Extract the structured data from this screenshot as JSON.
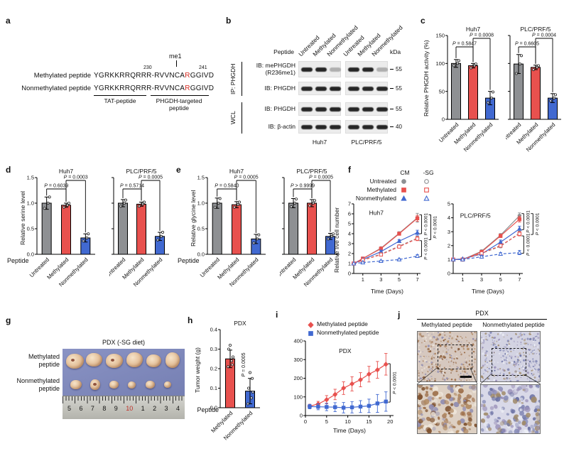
{
  "colors": {
    "gray": "#8e9093",
    "red": "#e8514e",
    "blue": "#4169d1",
    "black": "#111111",
    "ruler_red": "#c03028"
  },
  "panel_a": {
    "label": "a",
    "me1": "me1",
    "pos_start": "230",
    "pos_end": "241",
    "row1_label": "Methylated peptide",
    "row2_label": "Nonmethylated peptide",
    "seq_pre": "YGRKKRRQRRR-RVVNCA",
    "seq_red": "R",
    "seq_post": "GGIVD",
    "tat_caption": "TAT-peptide",
    "phgdh_caption_line1": "PHGDH-targeted",
    "phgdh_caption_line2": "peptide"
  },
  "panel_b": {
    "label": "b",
    "peptide": "Peptide",
    "kda": "kDa",
    "lanes": [
      "Untreated",
      "Methylated",
      "Nonmethylated",
      "Untreated",
      "Methylated",
      "Nonmethylated"
    ],
    "ip_group": "IP: PHGDH",
    "wcl_group": "WCL",
    "row1_line1": "IB: mePHGDH",
    "row1_line2": "(R236me1)",
    "row2": "IB: PHGDH",
    "row3": "IB: PHGDH",
    "row4": "IB: β-actin",
    "kda_marks": [
      "55",
      "55",
      "55",
      "40"
    ],
    "band_rows": [
      [
        1,
        1,
        0.3
      ],
      [
        1,
        1,
        1
      ],
      [
        1,
        1,
        1
      ],
      [
        1,
        1,
        1
      ]
    ],
    "cell_line1": "Huh7",
    "cell_line2": "PLC/PRF/5"
  },
  "panel_c": {
    "label": "c",
    "ylabel": "Relative PHGDH activity (%)"
  },
  "panel_d": {
    "label": "d",
    "ylabel": "Relative serine level",
    "peptide": "Peptide"
  },
  "panel_e": {
    "label": "e",
    "ylabel": "Relative glycine level",
    "peptide": "Peptide"
  },
  "panel_f": {
    "label": "f",
    "ylabel": "Relative live cell number",
    "legend": {
      "cm": "CM",
      "sg": "-SG",
      "rows": [
        "Untreated",
        "Methylated",
        "Nonmethylated"
      ]
    }
  },
  "panel_g": {
    "label": "g",
    "title": "PDX  (-SG diet)",
    "row1_line1": "Methylated",
    "row1_line2": "peptide",
    "row2_line1": "Nonmethylated",
    "row2_line2": "peptide",
    "ruler_numbers": [
      "5",
      "6",
      "7",
      "8",
      "9",
      "10",
      "1",
      "2",
      "3",
      "4"
    ]
  },
  "panel_h": {
    "label": "h",
    "ylabel": "Tumor weight (g)",
    "peptide": "Peptide"
  },
  "panel_i": {
    "label": "i",
    "legend": [
      "Methylated peptide",
      "Nonmethylated peptide"
    ]
  },
  "panel_j": {
    "label": "j",
    "title": "PDX",
    "col1": "Methylated peptide",
    "col2": "Nonmethylated peptide",
    "stains": {
      "meth_bg": "#d6c8bf",
      "meth_dots": [
        "#9a6a44",
        "#7d4f2c",
        "#8e8bb0",
        "#b08860",
        "#efe7dc"
      ],
      "nonmeth_bg": "#d3d3e2",
      "nonmeth_dots": [
        "#8287b4",
        "#666da0",
        "#9a90b8",
        "#a08a6a",
        "#eceef5"
      ],
      "meth_bg_zoom": "#ddd0c3",
      "nonmeth_bg_zoom": "#d9d9e8"
    }
  },
  "chart_data": [
    {
      "id": "c-huh7",
      "type": "bar",
      "title": "Huh7",
      "ylabel": "Relative PHGDH activity (%)",
      "ylim": [
        0,
        150
      ],
      "yticks": [
        "0",
        "50",
        "100",
        "150"
      ],
      "categories": [
        "Untreated",
        "Methylated",
        "Nonmethylated"
      ],
      "values": [
        100,
        96,
        38
      ],
      "errors": [
        7,
        4,
        12
      ],
      "dots": [
        [
          96,
          100,
          105
        ],
        [
          92,
          96,
          99
        ],
        [
          30,
          38,
          49
        ]
      ],
      "bar_colors": [
        "gray",
        "red",
        "blue"
      ],
      "brackets": [
        {
          "from": 0,
          "to": 1,
          "label": "P = 0.5847",
          "level": 0
        },
        {
          "from": 1,
          "to": 2,
          "label": "P = 0.0008",
          "level": 1
        }
      ]
    },
    {
      "id": "c-plc",
      "type": "bar",
      "title": "PLC/PRF/5",
      "ylabel": "Relative PHGDH activity (%)",
      "ylim": [
        0,
        150
      ],
      "yticks": [
        "0",
        "50",
        "100",
        "150"
      ],
      "categories": [
        "Untreated",
        "Methylated",
        "Nonmethylated"
      ],
      "values": [
        99,
        93,
        38
      ],
      "errors": [
        17,
        4,
        8
      ],
      "dots": [
        [
          82,
          99,
          114
        ],
        [
          89,
          93,
          96
        ],
        [
          33,
          38,
          44
        ]
      ],
      "bar_colors": [
        "gray",
        "red",
        "blue"
      ],
      "brackets": [
        {
          "from": 0,
          "to": 1,
          "label": "P = 0.6605",
          "level": 0
        },
        {
          "from": 1,
          "to": 2,
          "label": "P = 0.0004",
          "level": 1
        }
      ]
    },
    {
      "id": "d-huh7",
      "type": "bar",
      "title": "Huh7",
      "ylabel": "Relative serine level",
      "ylim": [
        0,
        1.5
      ],
      "yticks": [
        "0.0",
        "0.5",
        "1.0",
        "1.5"
      ],
      "categories": [
        "Untreated",
        "Methylated",
        "Nonmethylated"
      ],
      "values": [
        1.0,
        0.96,
        0.32
      ],
      "errors": [
        0.12,
        0.04,
        0.08
      ],
      "dots": [
        [
          0.9,
          1.0,
          1.12
        ],
        [
          0.92,
          0.96,
          1.0
        ],
        [
          0.26,
          0.32,
          0.4
        ]
      ],
      "bar_colors": [
        "gray",
        "red",
        "blue"
      ],
      "brackets": [
        {
          "from": 0,
          "to": 1,
          "label": "P = 0.6039",
          "level": 0
        },
        {
          "from": 1,
          "to": 2,
          "label": "P = 0.0003",
          "level": 1
        }
      ]
    },
    {
      "id": "d-plc",
      "type": "bar",
      "title": "PLC/PRF/5",
      "ylabel": "Relative serine level",
      "ylim": [
        0,
        1.5
      ],
      "yticks": [
        "0.0",
        "0.5",
        "1.0",
        "1.5"
      ],
      "categories": [
        "Untreated",
        "Methylated",
        "Nonmethylated"
      ],
      "values": [
        1.0,
        0.98,
        0.35
      ],
      "errors": [
        0.07,
        0.04,
        0.08
      ],
      "dots": [
        [
          0.94,
          1.0,
          1.06
        ],
        [
          0.94,
          0.98,
          1.02
        ],
        [
          0.28,
          0.35,
          0.43
        ]
      ],
      "bar_colors": [
        "gray",
        "red",
        "blue"
      ],
      "brackets": [
        {
          "from": 0,
          "to": 1,
          "label": "P = 0.5714",
          "level": 0
        },
        {
          "from": 1,
          "to": 2,
          "label": "P = 0.0005",
          "level": 1
        }
      ]
    },
    {
      "id": "e-huh7",
      "type": "bar",
      "title": "Huh7",
      "ylabel": "Relative glycine level",
      "ylim": [
        0,
        1.5
      ],
      "yticks": [
        "0.0",
        "0.5",
        "1.0",
        "1.5"
      ],
      "categories": [
        "Untreated",
        "Methylated",
        "Nonmethylated"
      ],
      "values": [
        1.0,
        0.97,
        0.3
      ],
      "errors": [
        0.1,
        0.06,
        0.09
      ],
      "dots": [
        [
          0.92,
          1.0,
          1.09
        ],
        [
          0.92,
          0.97,
          1.02
        ],
        [
          0.22,
          0.3,
          0.38
        ]
      ],
      "bar_colors": [
        "gray",
        "red",
        "blue"
      ],
      "brackets": [
        {
          "from": 0,
          "to": 1,
          "label": "P = 0.5840",
          "level": 0
        },
        {
          "from": 1,
          "to": 2,
          "label": "P = 0.0005",
          "level": 1
        }
      ]
    },
    {
      "id": "e-plc",
      "type": "bar",
      "title": "PLC/PRF/5",
      "ylabel": "Relative glycine level",
      "ylim": [
        0,
        1.5
      ],
      "yticks": [
        "0.0",
        "0.5",
        "1.0",
        "1.5"
      ],
      "categories": [
        "Untreated",
        "Methylated",
        "Nonmethylated"
      ],
      "values": [
        1.0,
        1.0,
        0.35
      ],
      "errors": [
        0.09,
        0.07,
        0.06
      ],
      "dots": [
        [
          0.93,
          1.0,
          1.08
        ],
        [
          0.95,
          1.0,
          1.05
        ],
        [
          0.3,
          0.35,
          0.4
        ]
      ],
      "bar_colors": [
        "gray",
        "red",
        "blue"
      ],
      "brackets": [
        {
          "from": 0,
          "to": 1,
          "label": "P > 0.9999",
          "level": 0
        },
        {
          "from": 1,
          "to": 2,
          "label": "P = 0.0005",
          "level": 1
        }
      ]
    },
    {
      "id": "f-huh7",
      "type": "line",
      "title": "Huh7",
      "ylabel": "Relative live cell number",
      "ylim": [
        0,
        7
      ],
      "yticks": [
        "0",
        "1",
        "2",
        "3",
        "4",
        "5",
        "6",
        "7"
      ],
      "x": [
        0,
        1,
        3,
        5,
        7
      ],
      "xticks": [
        1,
        3,
        5,
        7
      ],
      "xlim": [
        0,
        7.35
      ],
      "xlabel": "Time (Days)",
      "series": [
        {
          "name": "Untreated CM",
          "color": "gray",
          "marker": "circle",
          "fill": true,
          "dash": false,
          "values": [
            1,
            1.5,
            2.55,
            4.05,
            5.6
          ],
          "errors": [
            0,
            0.08,
            0.12,
            0.15,
            0.45
          ]
        },
        {
          "name": "Methylated CM",
          "color": "red",
          "marker": "square",
          "fill": true,
          "dash": false,
          "values": [
            1,
            1.5,
            2.5,
            4.0,
            5.55
          ],
          "errors": [
            0,
            0.08,
            0.1,
            0.15,
            0.3
          ]
        },
        {
          "name": "Nonmethylated CM",
          "color": "blue",
          "marker": "triangle",
          "fill": true,
          "dash": false,
          "values": [
            1,
            1.4,
            2.2,
            3.25,
            4.1
          ],
          "errors": [
            0,
            0.08,
            0.12,
            0.15,
            0.25
          ]
        },
        {
          "name": "Untreated -SG",
          "color": "gray",
          "marker": "circle",
          "fill": false,
          "dash": true,
          "values": [
            1,
            1.35,
            1.95,
            2.75,
            3.55
          ],
          "errors": [
            0,
            0.06,
            0.1,
            0.12,
            0.2
          ]
        },
        {
          "name": "Methylated -SG",
          "color": "red",
          "marker": "square",
          "fill": false,
          "dash": true,
          "values": [
            1,
            1.35,
            1.9,
            2.7,
            3.5
          ],
          "errors": [
            0,
            0.06,
            0.1,
            0.12,
            0.2
          ]
        },
        {
          "name": "Nonmethylated -SG",
          "color": "blue",
          "marker": "triangle",
          "fill": false,
          "dash": true,
          "values": [
            1,
            1.1,
            1.25,
            1.4,
            1.75
          ],
          "errors": [
            0,
            0.05,
            0.08,
            0.1,
            0.15
          ]
        }
      ],
      "brackets": [
        {
          "y1": 5.9,
          "y2": 4.0,
          "col": 0,
          "label": "P < 0.0001"
        },
        {
          "y1": 5.9,
          "y2": 3.4,
          "col": 1,
          "label": "P < 0.0001"
        },
        {
          "y1": 3.3,
          "y2": 1.7,
          "col": 0,
          "label": "P < 0.0001"
        }
      ]
    },
    {
      "id": "f-plc",
      "type": "line",
      "title": "PLC/PRF/5",
      "ylabel": "Relative live cell number",
      "ylim": [
        0,
        5
      ],
      "yticks": [
        "0",
        "1",
        "2",
        "3",
        "4",
        "5"
      ],
      "x": [
        0,
        1,
        3,
        5,
        7
      ],
      "xticks": [
        1,
        3,
        5,
        7
      ],
      "xlim": [
        0,
        7.35
      ],
      "xlabel": "Time (Days)",
      "series": [
        {
          "name": "Untreated CM",
          "color": "gray",
          "marker": "circle",
          "fill": true,
          "dash": false,
          "values": [
            1,
            1.0,
            1.6,
            2.75,
            4.15
          ],
          "errors": [
            0,
            0.05,
            0.1,
            0.12,
            0.2
          ]
        },
        {
          "name": "Methylated CM",
          "color": "red",
          "marker": "square",
          "fill": true,
          "dash": false,
          "values": [
            1,
            1.0,
            1.55,
            2.7,
            3.9
          ],
          "errors": [
            0,
            0.05,
            0.1,
            0.12,
            0.2
          ]
        },
        {
          "name": "Nonmethylated CM",
          "color": "blue",
          "marker": "triangle",
          "fill": true,
          "dash": false,
          "values": [
            1,
            1.05,
            1.4,
            2.25,
            3.2
          ],
          "errors": [
            0,
            0.05,
            0.1,
            0.15,
            0.2
          ]
        },
        {
          "name": "Untreated -SG",
          "color": "gray",
          "marker": "circle",
          "fill": false,
          "dash": true,
          "values": [
            1,
            1.0,
            1.45,
            1.95,
            2.9
          ],
          "errors": [
            0,
            0.05,
            0.08,
            0.1,
            0.15
          ]
        },
        {
          "name": "Methylated -SG",
          "color": "red",
          "marker": "square",
          "fill": false,
          "dash": true,
          "values": [
            1,
            1.0,
            1.45,
            2.0,
            2.85
          ],
          "errors": [
            0,
            0.05,
            0.08,
            0.1,
            0.15
          ]
        },
        {
          "name": "Nonmethylated -SG",
          "color": "blue",
          "marker": "triangle",
          "fill": false,
          "dash": true,
          "values": [
            1,
            1.0,
            1.2,
            1.4,
            1.5
          ],
          "errors": [
            0,
            0.04,
            0.06,
            0.1,
            0.15
          ]
        }
      ],
      "brackets": [
        {
          "y1": 4.3,
          "y2": 3.15,
          "col": 0,
          "label": "P < 0.0001"
        },
        {
          "y1": 4.3,
          "y2": 2.8,
          "col": 1,
          "label": "P < 0.0001"
        },
        {
          "y1": 2.7,
          "y2": 1.45,
          "col": 0,
          "label": "P < 0.0001"
        }
      ]
    },
    {
      "id": "h",
      "type": "bar",
      "title": "PDX",
      "ylabel": "Tumor weight (g)",
      "ylim": [
        0,
        0.4
      ],
      "yticks": [
        "0.0",
        "0.1",
        "0.2",
        "0.3",
        "0.4"
      ],
      "categories": [
        "Methylated",
        "Nonmethylated"
      ],
      "values": [
        0.25,
        0.085
      ],
      "errors": [
        0.045,
        0.065
      ],
      "dots": [
        [
          0.21,
          0.24,
          0.26,
          0.3,
          0.22,
          0.32
        ],
        [
          0.02,
          0.05,
          0.08,
          0.1,
          0.15,
          0.18
        ]
      ],
      "bar_colors": [
        "red",
        "blue"
      ],
      "side_label": "P = 0.0005"
    },
    {
      "id": "i",
      "type": "line",
      "title": "PDX",
      "ylabel": "Tumor volume (mm³)",
      "ylim": [
        0,
        400
      ],
      "yticks": [
        "0",
        "100",
        "200",
        "300",
        "400"
      ],
      "x": [
        1,
        3,
        5,
        7,
        9,
        11,
        13,
        15,
        17,
        19
      ],
      "xticks": [
        0,
        5,
        10,
        15,
        20
      ],
      "xlim": [
        0,
        20.8
      ],
      "xlabel": "Time (Days)",
      "series": [
        {
          "name": "Methylated peptide",
          "color": "red",
          "marker": "diamond",
          "fill": true,
          "dash": false,
          "values": [
            50,
            62,
            85,
            113,
            147,
            170,
            192,
            222,
            245,
            275
          ],
          "errors": [
            10,
            14,
            22,
            28,
            34,
            38,
            38,
            42,
            45,
            58
          ]
        },
        {
          "name": "Nonmethylated peptide",
          "color": "blue",
          "marker": "square",
          "fill": true,
          "dash": false,
          "values": [
            48,
            47,
            46,
            45,
            42,
            44,
            48,
            52,
            65,
            75
          ],
          "errors": [
            12,
            16,
            20,
            24,
            28,
            30,
            32,
            36,
            48,
            52
          ]
        }
      ],
      "brackets": [
        {
          "y1": 278,
          "y2": 72,
          "col": 0,
          "label": "P < 0.0001"
        }
      ]
    }
  ]
}
